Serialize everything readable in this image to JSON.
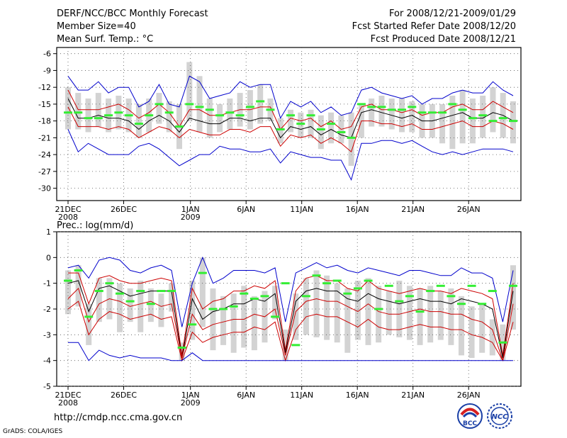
{
  "header": {
    "title": "DERF/NCC/BCC Monthly Forecast",
    "member_size": "Member Size=40",
    "variable": "Mean Surf. Temp.: °C",
    "for_period": "For 2008/12/21-2009/01/29",
    "fcst_started": "Fcst Started Refer Date 2008/12/20",
    "fcst_produced": "Fcst Produced Date 2008/12/21"
  },
  "footer": {
    "url": "http://cmdp.ncc.cma.gov.cn",
    "grads_credit": "GrADS: COLA/IGES",
    "logo_bcc_label": "BCC",
    "logo_ncc_label": "NCC"
  },
  "colors": {
    "mean_line": "#000000",
    "red_lines": "#cc0000",
    "blue_lines": "#0000cc",
    "bars": "#d3d3d3",
    "green_marks": "#33ee33"
  },
  "chart_data": [
    {
      "type": "line",
      "title": "Mean Surf. Temp.: °C",
      "days": 40,
      "x_tick_labels": [
        {
          "day": 0,
          "line1": "21DEC",
          "line2": "2008"
        },
        {
          "day": 5,
          "line1": "26DEC",
          "line2": ""
        },
        {
          "day": 11,
          "line1": "1JAN",
          "line2": "2009"
        },
        {
          "day": 16,
          "line1": "6JAN",
          "line2": ""
        },
        {
          "day": 21,
          "line1": "11JAN",
          "line2": ""
        },
        {
          "day": 26,
          "line1": "16JAN",
          "line2": ""
        },
        {
          "day": 31,
          "line1": "21JAN",
          "line2": ""
        },
        {
          "day": 36,
          "line1": "26JAN",
          "line2": ""
        }
      ],
      "ylim": [
        -32.2,
        -4.9
      ],
      "yticks": [
        -6,
        -9,
        -12,
        -15,
        -18,
        -21,
        -24,
        -27,
        -30
      ],
      "grid": true,
      "series": [
        {
          "name": "blue_upper",
          "color": "blue",
          "values": [
            -10,
            -12.5,
            -12.5,
            -11,
            -13,
            -12,
            -12,
            -15.5,
            -14.5,
            -11.5,
            -15,
            -15.5,
            -10,
            -11,
            -14,
            -13.5,
            -13,
            -11,
            -12,
            -11.5,
            -11.5,
            -17.5,
            -14.5,
            -15.5,
            -14.5,
            -16.5,
            -15.5,
            -17,
            -16.5,
            -12.5,
            -12,
            -13,
            -13.5,
            -14,
            -13.5,
            -15,
            -14,
            -14,
            -13,
            -12.5,
            -13,
            -13,
            -11,
            -12.5,
            -13.5
          ]
        },
        {
          "name": "red_upper",
          "color": "red",
          "values": [
            -12.5,
            -16,
            -16,
            -16,
            -15.5,
            -15,
            -16,
            -17.5,
            -16.5,
            -15,
            -16.5,
            -19,
            -16,
            -16,
            -17,
            -17,
            -16.5,
            -16,
            -16,
            -15.5,
            -15.5,
            -19.5,
            -17.5,
            -18,
            -17.5,
            -19,
            -18,
            -19.5,
            -19,
            -15.5,
            -15,
            -16,
            -16,
            -16.5,
            -16,
            -17,
            -16.5,
            -16.5,
            -15.5,
            -15,
            -16,
            -16,
            -14.5,
            -15.5,
            -16.5
          ]
        },
        {
          "name": "ensemble_mean",
          "color": "black",
          "values": [
            -14,
            -17.5,
            -17.5,
            -17,
            -17.5,
            -17.5,
            -18,
            -19.5,
            -18,
            -17,
            -18,
            -20,
            -17.5,
            -18,
            -18.5,
            -18.5,
            -17.5,
            -17.5,
            -18,
            -17.5,
            -17.5,
            -21,
            -19,
            -19.5,
            -19,
            -20.5,
            -19.5,
            -20.5,
            -21,
            -16.5,
            -16,
            -16.5,
            -17,
            -17.5,
            -17,
            -18,
            -18,
            -17.5,
            -17,
            -16.5,
            -17.5,
            -17.5,
            -16.5,
            -17,
            -18
          ]
        },
        {
          "name": "red_lower",
          "color": "red",
          "values": [
            -15.5,
            -19,
            -19,
            -19,
            -19.5,
            -19,
            -19.5,
            -21,
            -20,
            -19,
            -19.5,
            -21,
            -19.5,
            -20,
            -20.5,
            -20.5,
            -19.5,
            -19.5,
            -20,
            -19,
            -19,
            -22.5,
            -20.5,
            -21,
            -20.5,
            -22,
            -21,
            -22,
            -23.5,
            -18,
            -18,
            -18.5,
            -18.5,
            -19,
            -18.5,
            -19.5,
            -19.5,
            -19,
            -18.5,
            -18,
            -19,
            -19,
            -18,
            -18.5,
            -19.5
          ]
        },
        {
          "name": "blue_lower",
          "color": "blue",
          "values": [
            -19.5,
            -23.5,
            -22,
            -23,
            -24,
            -24,
            -24,
            -22.5,
            -22,
            -23,
            -24.5,
            -26,
            -25,
            -24,
            -24,
            -22.5,
            -23,
            -23,
            -23.5,
            -23.5,
            -23,
            -25.5,
            -23.5,
            -24,
            -24.5,
            -24.5,
            -25,
            -25,
            -28.5,
            -22,
            -22,
            -21.5,
            -21.5,
            -22,
            -21.5,
            -22.5,
            -23.5,
            -24,
            -23.5,
            -24,
            -23.5,
            -23,
            -23,
            -23,
            -23.5
          ]
        }
      ],
      "bars": [
        [
          -19.5,
          -12
        ],
        [
          -19.5,
          -13
        ],
        [
          -20,
          -14
        ],
        [
          -19,
          -13
        ],
        [
          -20,
          -14
        ],
        [
          -19.5,
          -13.5
        ],
        [
          -20,
          -14
        ],
        [
          -21,
          -15
        ],
        [
          -20,
          -14
        ],
        [
          -18.5,
          -13
        ],
        [
          -20,
          -14.5
        ],
        [
          -23,
          -15
        ],
        [
          -18,
          -7.5
        ],
        [
          -20,
          -10
        ],
        [
          -21,
          -14
        ],
        [
          -20,
          -15
        ],
        [
          -19.5,
          -14
        ],
        [
          -19,
          -13
        ],
        [
          -19.5,
          -12.5
        ],
        [
          -18.5,
          -11.5
        ],
        [
          -18,
          -14
        ],
        [
          -22,
          -17.5
        ],
        [
          -20,
          -16
        ],
        [
          -21,
          -16.5
        ],
        [
          -21,
          -16
        ],
        [
          -23,
          -17
        ],
        [
          -22,
          -16.5
        ],
        [
          -22,
          -17
        ],
        [
          -26,
          -16.5
        ],
        [
          -21,
          -15
        ],
        [
          -19,
          -14
        ],
        [
          -19,
          -13.5
        ],
        [
          -19.5,
          -14
        ],
        [
          -20,
          -14
        ],
        [
          -20,
          -14.5
        ],
        [
          -21,
          -15
        ],
        [
          -21,
          -15
        ],
        [
          -22,
          -15
        ],
        [
          -23,
          -13.5
        ],
        [
          -22,
          -12.5
        ],
        [
          -22,
          -14
        ],
        [
          -21,
          -13.5
        ],
        [
          -20,
          -12
        ],
        [
          -21,
          -13
        ],
        [
          -22,
          -14.5
        ]
      ],
      "green_marks": [
        -16.5,
        -16.5,
        -17.5,
        -17.5,
        -17,
        -16.5,
        -17,
        -18.5,
        -17,
        -15,
        -16.5,
        -19,
        -15,
        -15.5,
        -16,
        -17,
        -16.5,
        -17,
        -15.5,
        -14.5,
        -16,
        -19.5,
        -17,
        -18.5,
        -17,
        -19.5,
        -18.5,
        -20,
        -21,
        -15,
        -15.5,
        -15.5,
        -16,
        -16,
        -15.5,
        -16.5,
        -16.5,
        -16.5,
        -15,
        -16,
        -17.5,
        -17,
        -18,
        -17.5,
        -18
      ]
    },
    {
      "type": "line",
      "title": "Prec.: log(mm/d)",
      "days": 40,
      "x_tick_labels": [
        {
          "day": 0,
          "line1": "21DEC",
          "line2": "2008"
        },
        {
          "day": 5,
          "line1": "26DEC",
          "line2": ""
        },
        {
          "day": 11,
          "line1": "1JAN",
          "line2": "2009"
        },
        {
          "day": 16,
          "line1": "6JAN",
          "line2": ""
        },
        {
          "day": 21,
          "line1": "11JAN",
          "line2": ""
        },
        {
          "day": 26,
          "line1": "16JAN",
          "line2": ""
        },
        {
          "day": 31,
          "line1": "21JAN",
          "line2": ""
        },
        {
          "day": 36,
          "line1": "26JAN",
          "line2": ""
        }
      ],
      "ylim": [
        -5,
        1
      ],
      "yticks": [
        1,
        0,
        -1,
        -2,
        -3,
        -4,
        -5
      ],
      "grid": true,
      "series": [
        {
          "name": "blue_upper",
          "color": "blue",
          "values": [
            -0.4,
            -0.3,
            -0.8,
            -0.1,
            0,
            -0.1,
            -0.5,
            -0.6,
            -0.4,
            -0.3,
            -0.5,
            -2.7,
            -1,
            0,
            -1,
            -0.8,
            -0.5,
            -0.5,
            -0.5,
            -0.6,
            -0.4,
            -2.5,
            -0.6,
            -0.4,
            -0.2,
            -0.4,
            -0.3,
            -0.5,
            -0.6,
            -0.4,
            -0.5,
            -0.6,
            -0.7,
            -0.5,
            -0.5,
            -0.6,
            -0.7,
            -0.7,
            -0.4,
            -0.6,
            -0.6,
            -0.8,
            -2.5,
            -0.5
          ]
        },
        {
          "name": "red_upper",
          "color": "red",
          "values": [
            -0.6,
            -0.6,
            -1.8,
            -0.8,
            -0.7,
            -0.9,
            -1,
            -1,
            -0.9,
            -0.8,
            -0.9,
            -3.8,
            -1.2,
            -2,
            -1.7,
            -1.6,
            -1.3,
            -1.3,
            -1.1,
            -1.2,
            -0.9,
            -3.6,
            -1.3,
            -0.8,
            -0.7,
            -0.9,
            -0.9,
            -1.2,
            -1.3,
            -0.9,
            -1.2,
            -1.3,
            -1.4,
            -1.3,
            -1.2,
            -1.3,
            -1.3,
            -1.4,
            -1.2,
            -1.3,
            -1.4,
            -1.6,
            -3.8,
            -1
          ]
        },
        {
          "name": "ensemble_mean",
          "color": "black",
          "values": [
            -1,
            -0.9,
            -2.1,
            -1.2,
            -1.1,
            -1.3,
            -1.5,
            -1.4,
            -1.3,
            -1.3,
            -1.3,
            -3.9,
            -1.6,
            -2.4,
            -2.1,
            -2,
            -1.8,
            -1.8,
            -1.6,
            -1.7,
            -1.4,
            -3.7,
            -1.7,
            -1.3,
            -1.2,
            -1.3,
            -1.3,
            -1.6,
            -1.7,
            -1.4,
            -1.6,
            -1.7,
            -1.8,
            -1.7,
            -1.6,
            -1.7,
            -1.7,
            -1.8,
            -1.6,
            -1.7,
            -1.8,
            -2,
            -3.9,
            -1.3
          ]
        },
        {
          "name": "red_lower",
          "color": "red",
          "values": [
            -1.6,
            -1.2,
            -2.5,
            -1.8,
            -1.6,
            -1.7,
            -1.9,
            -1.8,
            -1.7,
            -1.9,
            -1.8,
            -3.9,
            -2.2,
            -2.8,
            -2.6,
            -2.5,
            -2.4,
            -2.4,
            -2.2,
            -2.3,
            -2,
            -3.8,
            -2.1,
            -1.7,
            -1.6,
            -1.7,
            -1.7,
            -1.9,
            -2.1,
            -1.8,
            -2.1,
            -2.2,
            -2.2,
            -2.1,
            -2,
            -2.1,
            -2.1,
            -2.2,
            -2.2,
            -2.4,
            -2.5,
            -2.8,
            -4,
            -1.8
          ]
        },
        {
          "name": "red_lowest",
          "color": "red",
          "values": [
            -2,
            -1.7,
            -3,
            -2.4,
            -2.1,
            -2.2,
            -2.4,
            -2.3,
            -2.2,
            -2.4,
            -2.3,
            -4,
            -2.9,
            -3.3,
            -3.1,
            -3,
            -2.9,
            -2.9,
            -2.7,
            -2.8,
            -2.5,
            -4,
            -2.8,
            -2.3,
            -2.2,
            -2.3,
            -2.3,
            -2.5,
            -2.7,
            -2.4,
            -2.7,
            -2.8,
            -2.8,
            -2.7,
            -2.6,
            -2.7,
            -2.7,
            -2.8,
            -2.8,
            -3,
            -3.1,
            -3.3,
            -4,
            -2.5
          ]
        },
        {
          "name": "blue_lower",
          "color": "blue",
          "values": [
            -3.3,
            -3.3,
            -4,
            -3.6,
            -3.8,
            -3.9,
            -3.8,
            -3.9,
            -3.9,
            -3.9,
            -4,
            -4,
            -3.7,
            -4,
            -4,
            -4,
            -4,
            -4,
            -4,
            -4,
            -4,
            -4,
            -4,
            -4,
            -4,
            -4,
            -4,
            -4,
            -4,
            -4,
            -4,
            -4,
            -4,
            -4,
            -4,
            -4,
            -4,
            -4,
            -4,
            -4,
            -4,
            -4,
            -4,
            -4
          ]
        }
      ],
      "bars": [
        [
          -2.2,
          -0.5
        ],
        [
          -1.9,
          -0.3
        ],
        [
          -3.4,
          -1.8
        ],
        [
          -2.5,
          -0.8
        ],
        [
          -2.4,
          -0.8
        ],
        [
          -2.9,
          -1
        ],
        [
          -2.5,
          -1.2
        ],
        [
          -2.9,
          -0.9
        ],
        [
          -2.5,
          -1.2
        ],
        [
          -2.7,
          -1.4
        ],
        [
          -2.1,
          -1
        ],
        [
          -4,
          -3.3
        ],
        [
          -3.2,
          -0.9
        ],
        [
          -2.7,
          0
        ],
        [
          -3.6,
          -1.2
        ],
        [
          -3.4,
          -1.5
        ],
        [
          -3.7,
          -1.4
        ],
        [
          -3.5,
          -1.1
        ],
        [
          -3.6,
          -1.5
        ],
        [
          -3.3,
          -1.3
        ],
        [
          -2.4,
          -1.1
        ],
        [
          -4,
          -2.8
        ],
        [
          -3.2,
          -1.4
        ],
        [
          -3,
          -0.8
        ],
        [
          -3.1,
          -0.5
        ],
        [
          -3.2,
          -0.7
        ],
        [
          -3.3,
          -1
        ],
        [
          -3.7,
          -1.2
        ],
        [
          -3.2,
          -0.9
        ],
        [
          -3.4,
          -0.8
        ],
        [
          -3.3,
          -1.1
        ],
        [
          -3,
          -1.3
        ],
        [
          -3.1,
          -0.9
        ],
        [
          -3.2,
          -1.1
        ],
        [
          -3.4,
          -1.2
        ],
        [
          -3.3,
          -1.1
        ],
        [
          -3.2,
          -1.3
        ],
        [
          -3.4,
          -1.2
        ],
        [
          -3.8,
          -1.5
        ],
        [
          -3.9,
          -1.9
        ],
        [
          -3.7,
          -1.8
        ],
        [
          -3.8,
          -2.4
        ],
        [
          -4,
          -2.6
        ],
        [
          -2.8,
          -0.3
        ]
      ],
      "green_marks": [
        -0.9,
        -0.5,
        -2.3,
        -1.3,
        -1,
        -1.4,
        -1.7,
        -1.3,
        -1.8,
        -1.3,
        -1.3,
        -3.5,
        -2.6,
        -0.6,
        -2,
        -2,
        -1.9,
        -1.4,
        -1.6,
        -1.5,
        -2.3,
        -1,
        -3.4,
        -1.5,
        -0.7,
        -1,
        -0.9,
        -1.4,
        -1.2,
        -0.9,
        -2,
        -1.1,
        -1.7,
        -1.5,
        -2.1,
        -1.3,
        -1.1,
        -1.5,
        -1.8,
        -1.1,
        -1.8,
        -1.3,
        -3.3,
        -1.1
      ]
    }
  ]
}
